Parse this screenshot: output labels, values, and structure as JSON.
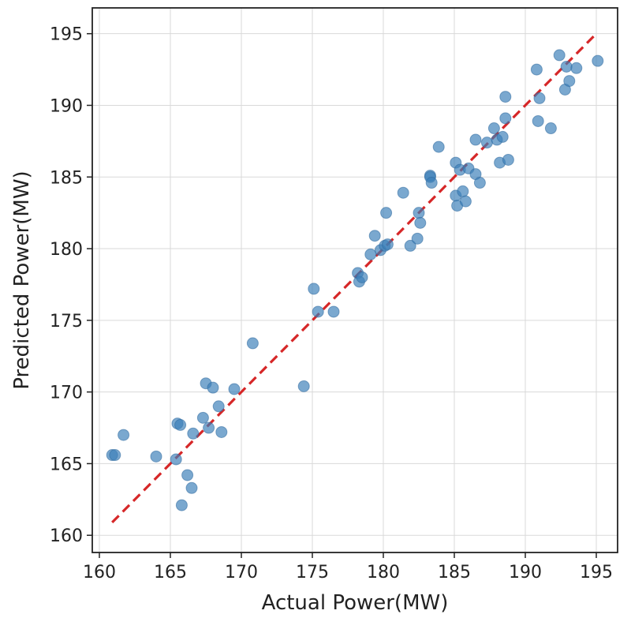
{
  "chart_data": {
    "type": "scatter",
    "title": "",
    "xlabel": "Actual Power(MW)",
    "ylabel": "Predicted Power(MW)",
    "xlim": [
      159.5,
      196.5
    ],
    "ylim": [
      158.8,
      196.8
    ],
    "xticks": [
      160,
      165,
      170,
      175,
      180,
      185,
      190,
      195
    ],
    "yticks": [
      160,
      165,
      170,
      175,
      180,
      185,
      190,
      195
    ],
    "grid": true,
    "reference_line": {
      "type": "y=x",
      "from": 160.9,
      "to": 195.0,
      "style": "dashed",
      "color": "#d62728"
    },
    "point_color": "#3b7fb8",
    "points": [
      {
        "x": 160.9,
        "y": 165.6
      },
      {
        "x": 161.1,
        "y": 165.6
      },
      {
        "x": 161.7,
        "y": 167.0
      },
      {
        "x": 164.0,
        "y": 165.5
      },
      {
        "x": 165.4,
        "y": 165.3
      },
      {
        "x": 165.5,
        "y": 167.8
      },
      {
        "x": 165.7,
        "y": 167.7
      },
      {
        "x": 165.8,
        "y": 162.1
      },
      {
        "x": 166.2,
        "y": 164.2
      },
      {
        "x": 166.5,
        "y": 163.3
      },
      {
        "x": 166.6,
        "y": 167.1
      },
      {
        "x": 167.3,
        "y": 168.2
      },
      {
        "x": 167.5,
        "y": 170.6
      },
      {
        "x": 167.7,
        "y": 167.5
      },
      {
        "x": 168.0,
        "y": 170.3
      },
      {
        "x": 168.4,
        "y": 169.0
      },
      {
        "x": 168.6,
        "y": 167.2
      },
      {
        "x": 169.5,
        "y": 170.2
      },
      {
        "x": 170.8,
        "y": 173.4
      },
      {
        "x": 174.4,
        "y": 170.4
      },
      {
        "x": 175.1,
        "y": 177.2
      },
      {
        "x": 175.4,
        "y": 175.6
      },
      {
        "x": 176.5,
        "y": 175.6
      },
      {
        "x": 178.2,
        "y": 178.3
      },
      {
        "x": 178.3,
        "y": 177.7
      },
      {
        "x": 178.5,
        "y": 178.0
      },
      {
        "x": 179.1,
        "y": 179.6
      },
      {
        "x": 179.4,
        "y": 180.9
      },
      {
        "x": 179.8,
        "y": 179.9
      },
      {
        "x": 180.1,
        "y": 180.2
      },
      {
        "x": 180.3,
        "y": 180.3
      },
      {
        "x": 180.2,
        "y": 182.5
      },
      {
        "x": 181.4,
        "y": 183.9
      },
      {
        "x": 181.9,
        "y": 180.2
      },
      {
        "x": 182.4,
        "y": 180.7
      },
      {
        "x": 182.5,
        "y": 182.5
      },
      {
        "x": 182.6,
        "y": 181.8
      },
      {
        "x": 183.3,
        "y": 185.1
      },
      {
        "x": 183.3,
        "y": 185.0
      },
      {
        "x": 183.4,
        "y": 184.6
      },
      {
        "x": 183.9,
        "y": 187.1
      },
      {
        "x": 185.1,
        "y": 186.0
      },
      {
        "x": 185.1,
        "y": 183.7
      },
      {
        "x": 185.2,
        "y": 183.0
      },
      {
        "x": 185.4,
        "y": 185.5
      },
      {
        "x": 185.6,
        "y": 184.0
      },
      {
        "x": 185.8,
        "y": 183.3
      },
      {
        "x": 186.0,
        "y": 185.6
      },
      {
        "x": 186.5,
        "y": 187.6
      },
      {
        "x": 186.5,
        "y": 185.2
      },
      {
        "x": 186.8,
        "y": 184.6
      },
      {
        "x": 187.3,
        "y": 187.4
      },
      {
        "x": 187.8,
        "y": 188.4
      },
      {
        "x": 188.0,
        "y": 187.6
      },
      {
        "x": 188.2,
        "y": 186.0
      },
      {
        "x": 188.4,
        "y": 187.8
      },
      {
        "x": 188.6,
        "y": 190.6
      },
      {
        "x": 188.6,
        "y": 189.1
      },
      {
        "x": 188.8,
        "y": 186.2
      },
      {
        "x": 190.8,
        "y": 192.5
      },
      {
        "x": 190.9,
        "y": 188.9
      },
      {
        "x": 191.0,
        "y": 190.5
      },
      {
        "x": 191.8,
        "y": 188.4
      },
      {
        "x": 192.4,
        "y": 193.5
      },
      {
        "x": 192.8,
        "y": 191.1
      },
      {
        "x": 192.9,
        "y": 192.7
      },
      {
        "x": 193.1,
        "y": 191.7
      },
      {
        "x": 193.6,
        "y": 192.6
      },
      {
        "x": 195.1,
        "y": 193.1
      }
    ]
  }
}
